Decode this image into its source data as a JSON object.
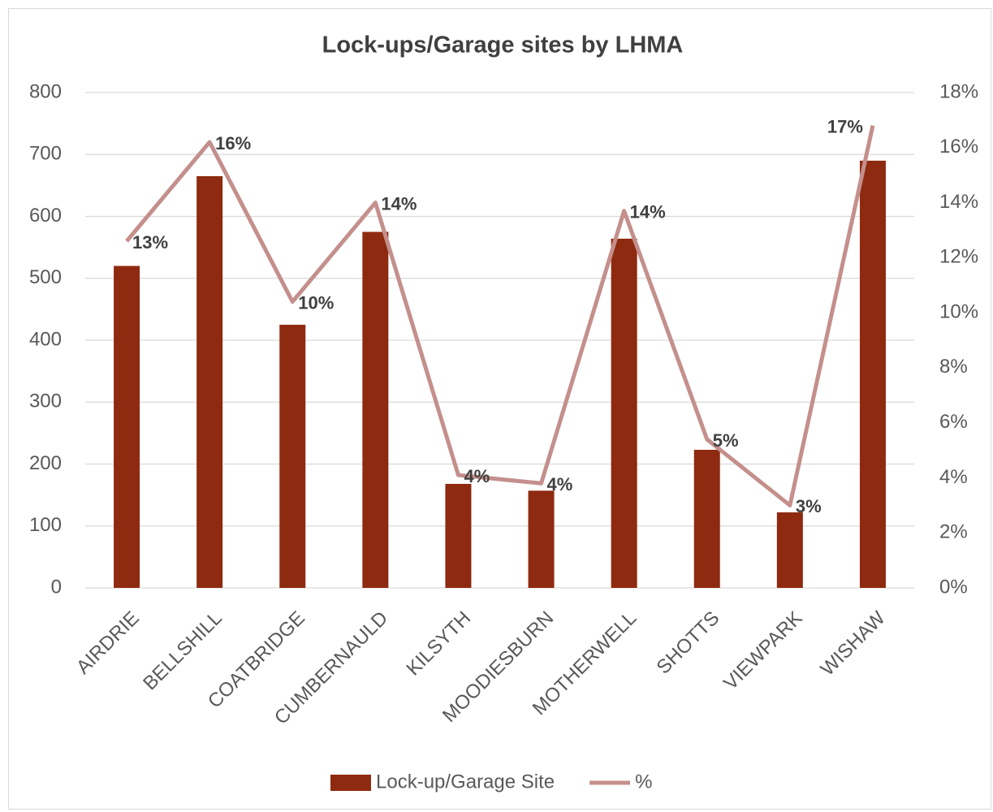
{
  "chart_data": {
    "type": "combo",
    "title": "Lock-ups/Garage sites by LHMA",
    "categories": [
      "AIRDRIE",
      "BELLSHILL",
      "COATBRIDGE",
      "CUMBERNAULD",
      "KILSYTH",
      "MOODIESBURN",
      "MOTHERWELL",
      "SHOTTS",
      "VIEWPARK",
      "WISHAW"
    ],
    "series": [
      {
        "name": "Lock-up/Garage Site",
        "type": "bar",
        "color": "#8e2a10",
        "values": [
          520,
          665,
          425,
          575,
          168,
          157,
          564,
          223,
          122,
          690
        ]
      },
      {
        "name": "%",
        "type": "line",
        "axis": "y2",
        "color": "#c48f8c",
        "values": [
          12.6,
          16.2,
          10.4,
          14.0,
          4.1,
          3.8,
          13.7,
          5.4,
          3.0,
          16.8
        ],
        "value_labels": [
          "13%",
          "16%",
          "10%",
          "14%",
          "4%",
          "4%",
          "14%",
          "5%",
          "3%",
          "17%"
        ]
      }
    ],
    "ylim": [
      0,
      800
    ],
    "yticks": [
      0,
      100,
      200,
      300,
      400,
      500,
      600,
      700,
      800
    ],
    "y2lim": [
      0,
      18
    ],
    "y2ticks": [
      {
        "value": 0,
        "label": "0%"
      },
      {
        "value": 2,
        "label": "2%"
      },
      {
        "value": 4,
        "label": "4%"
      },
      {
        "value": 6,
        "label": "6%"
      },
      {
        "value": 8,
        "label": "8%"
      },
      {
        "value": 10,
        "label": "10%"
      },
      {
        "value": 12,
        "label": "12%"
      },
      {
        "value": 14,
        "label": "14%"
      },
      {
        "value": 16,
        "label": "16%"
      },
      {
        "value": 18,
        "label": "18%"
      }
    ],
    "grid": true,
    "legend": "bottom"
  }
}
